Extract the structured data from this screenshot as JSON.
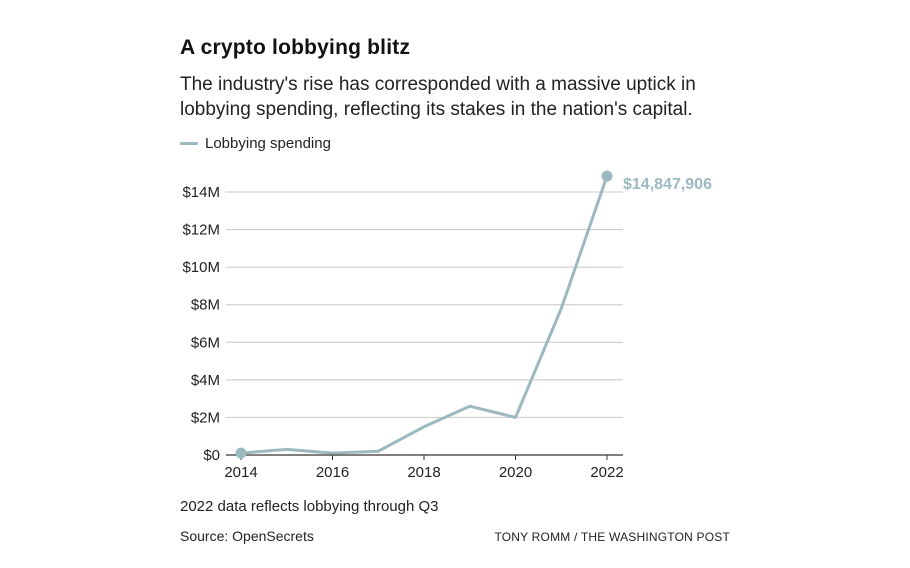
{
  "header": {
    "title": "A crypto lobbying blitz",
    "subtitle": "The industry's rise has corresponded with a massive uptick in lobbying spending, reflecting its stakes in the nation's capital."
  },
  "footer": {
    "note": "2022 data reflects lobbying through Q3",
    "source": "Source: OpenSecrets",
    "credit": "TONY ROMM / THE WASHINGTON POST"
  },
  "colors": {
    "series": "#9cb9bf",
    "grid": "#c8c8c8",
    "axis": "#333333"
  },
  "chart_data": {
    "type": "line",
    "title": "A crypto lobbying blitz",
    "xlabel": "",
    "ylabel": "",
    "x": [
      2014,
      2015,
      2016,
      2017,
      2018,
      2019,
      2020,
      2021,
      2022
    ],
    "series": [
      {
        "name": "Lobbying spending",
        "values": [
          100000,
          300000,
          100000,
          200000,
          1500000,
          2600000,
          2000000,
          7800000,
          14847906
        ]
      }
    ],
    "xlim": [
      2014,
      2022
    ],
    "ylim": [
      0,
      14000000
    ],
    "xticks": [
      2014,
      2016,
      2018,
      2020,
      2022
    ],
    "xtick_labels": [
      "2014",
      "2016",
      "2018",
      "2020",
      "2022"
    ],
    "yticks": [
      0,
      2000000,
      4000000,
      6000000,
      8000000,
      10000000,
      12000000,
      14000000
    ],
    "ytick_labels": [
      "$0",
      "$2M",
      "$4M",
      "$6M",
      "$8M",
      "$10M",
      "$12M",
      "$14M"
    ],
    "end_label": "$14,847,906",
    "grid": true,
    "legend_position": "top-left"
  }
}
